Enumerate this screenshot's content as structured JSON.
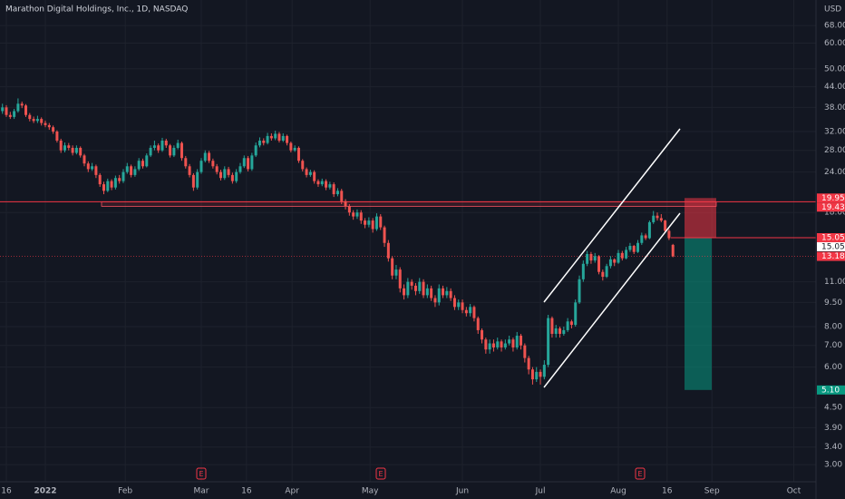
{
  "chart_data": {
    "type": "candlestick",
    "title": "Marathon Digital Holdings, Inc., 1D, NASDAQ",
    "y_axis_label": "USD",
    "log_scale": true,
    "grid": true,
    "up_color": "#26a69a",
    "down_color": "#ef5350",
    "ylim": [
      2.35,
      81.5
    ],
    "xlim": [
      -0.63,
      208.7
    ],
    "yticks": [
      {
        "value": 68,
        "label": "68.00"
      },
      {
        "value": 60,
        "label": "60.00"
      },
      {
        "value": 50,
        "label": "50.00"
      },
      {
        "value": 44,
        "label": "44.00"
      },
      {
        "value": 38,
        "label": "38.00"
      },
      {
        "value": 32,
        "label": "32.00"
      },
      {
        "value": 28,
        "label": "28.00"
      },
      {
        "value": 24,
        "label": "24.00"
      },
      {
        "value": 18,
        "label": "18.00"
      },
      {
        "value": 11,
        "label": "11.00"
      },
      {
        "value": 9.5,
        "label": "9.50"
      },
      {
        "value": 8,
        "label": "8.00"
      },
      {
        "value": 7,
        "label": "7.00"
      },
      {
        "value": 6,
        "label": "6.00"
      },
      {
        "value": 4.5,
        "label": "4.50"
      },
      {
        "value": 3.9,
        "label": "3.90"
      },
      {
        "value": 3.4,
        "label": "3.40"
      },
      {
        "value": 3,
        "label": "3.00"
      }
    ],
    "xticks": [
      {
        "value": 1,
        "label": "16"
      },
      {
        "value": 11,
        "label": "2022"
      },
      {
        "value": 31.5,
        "label": "Feb"
      },
      {
        "value": 51,
        "label": "Mar"
      },
      {
        "value": 62.6,
        "label": "16"
      },
      {
        "value": 74.3,
        "label": "Apr"
      },
      {
        "value": 94.3,
        "label": "May"
      },
      {
        "value": 118,
        "label": "Jun"
      },
      {
        "value": 138,
        "label": "Jul"
      },
      {
        "value": 158,
        "label": "Aug"
      },
      {
        "value": 170.5,
        "label": "16"
      },
      {
        "value": 182,
        "label": "Sep"
      },
      {
        "value": 203,
        "label": "Oct"
      }
    ],
    "price_labels": [
      {
        "value": 19.95,
        "color": "#f23645"
      },
      {
        "value": 19.43,
        "color": "#f23645"
      },
      {
        "value": 15.05,
        "color": "#f23645"
      },
      {
        "value": 15.05,
        "color": "#ffffff"
      },
      {
        "value": 13.18,
        "color": "#f23645"
      },
      {
        "value": 5.1,
        "label": "5.10",
        "color": "#089981"
      }
    ],
    "earnings_markers": [
      "E",
      "E",
      "E"
    ],
    "candles": [
      [
        37,
        39,
        36.3,
        38
      ],
      [
        38,
        38.6,
        35.5,
        36
      ],
      [
        36,
        36.8,
        35,
        35.5
      ],
      [
        35.5,
        37.6,
        35,
        37
      ],
      [
        37,
        40.5,
        36.6,
        39
      ],
      [
        39,
        39.6,
        37.8,
        38.5
      ],
      [
        38.5,
        38.9,
        35.5,
        36
      ],
      [
        36,
        36.5,
        34.4,
        35
      ],
      [
        35,
        35.6,
        34,
        34.5
      ],
      [
        34.5,
        35.8,
        34,
        35
      ],
      [
        35,
        35.4,
        33.4,
        34
      ],
      [
        34,
        34.6,
        33,
        33.5
      ],
      [
        33.5,
        34,
        32.4,
        33
      ],
      [
        33,
        33.4,
        31.5,
        32
      ],
      [
        32,
        32.3,
        29.6,
        30
      ],
      [
        30,
        30.4,
        27.5,
        28
      ],
      [
        28,
        29.6,
        27.6,
        29
      ],
      [
        29,
        29.5,
        28,
        28.5
      ],
      [
        28.5,
        29,
        27,
        27.5
      ],
      [
        27.5,
        29,
        27.2,
        28.5
      ],
      [
        28.5,
        28.8,
        26.6,
        27
      ],
      [
        27,
        27.3,
        25,
        25.5
      ],
      [
        25.5,
        25.9,
        24,
        24.5
      ],
      [
        24.5,
        25.6,
        24.2,
        25
      ],
      [
        25,
        25.3,
        23,
        23.5
      ],
      [
        23.5,
        23.8,
        21.6,
        22
      ],
      [
        22,
        22.4,
        20.5,
        21
      ],
      [
        21,
        22.9,
        20.8,
        22.5
      ],
      [
        22.5,
        22.8,
        21.1,
        21.5
      ],
      [
        21.5,
        23.4,
        21.2,
        23
      ],
      [
        23,
        23.5,
        22.1,
        22.5
      ],
      [
        22.5,
        24.5,
        22.2,
        24
      ],
      [
        24,
        25.6,
        23.7,
        25
      ],
      [
        25,
        25.3,
        23.1,
        23.5
      ],
      [
        23.5,
        25,
        23.2,
        24.5
      ],
      [
        24.5,
        26.5,
        24.2,
        26
      ],
      [
        26,
        26.4,
        24.6,
        25
      ],
      [
        25,
        27.4,
        24.8,
        27
      ],
      [
        27,
        29,
        26.7,
        28.5
      ],
      [
        28.5,
        30,
        28,
        29
      ],
      [
        29,
        29.4,
        27.5,
        28
      ],
      [
        28,
        30.6,
        27.7,
        30
      ],
      [
        30,
        30.4,
        28.5,
        29
      ],
      [
        29,
        29.3,
        26.6,
        27
      ],
      [
        27,
        29,
        26.7,
        28.5
      ],
      [
        28.5,
        30.2,
        28.2,
        29.5
      ],
      [
        29.5,
        29.8,
        26,
        26.5
      ],
      [
        26.5,
        26.9,
        24.6,
        25
      ],
      [
        25,
        25.4,
        23.1,
        23.5
      ],
      [
        23.5,
        23.8,
        21,
        21.5
      ],
      [
        21.5,
        24.5,
        21.2,
        24
      ],
      [
        24,
        26.5,
        23.7,
        26
      ],
      [
        26,
        28,
        25.7,
        27.5
      ],
      [
        27.5,
        27.9,
        25.6,
        26
      ],
      [
        26,
        26.4,
        24.6,
        25
      ],
      [
        25,
        25.4,
        23.6,
        24
      ],
      [
        24,
        24.4,
        22.6,
        23
      ],
      [
        23,
        25,
        22.7,
        24.5
      ],
      [
        24.5,
        24.9,
        23.1,
        23.5
      ],
      [
        23.5,
        23.9,
        22.1,
        22.5
      ],
      [
        22.5,
        24.5,
        22.2,
        24
      ],
      [
        24,
        25.6,
        23.7,
        25
      ],
      [
        25,
        27,
        24.7,
        26.5
      ],
      [
        26.5,
        26.9,
        24.1,
        24.5
      ],
      [
        24.5,
        27.5,
        24.2,
        27
      ],
      [
        27,
        29.6,
        26.7,
        29
      ],
      [
        29,
        30.7,
        28.6,
        30
      ],
      [
        30,
        30.5,
        29,
        29.5
      ],
      [
        29.5,
        31.7,
        29.2,
        31
      ],
      [
        31,
        31.6,
        30,
        30.5
      ],
      [
        30.5,
        32.2,
        30.1,
        31.5
      ],
      [
        31.5,
        31.9,
        29.6,
        30
      ],
      [
        30,
        31.6,
        29.7,
        31
      ],
      [
        31,
        31.3,
        29,
        29.5
      ],
      [
        29.5,
        29.8,
        27.6,
        28
      ],
      [
        28,
        29,
        27.7,
        28.5
      ],
      [
        28.5,
        28.8,
        25.6,
        26
      ],
      [
        26,
        26.3,
        24.1,
        24.5
      ],
      [
        24.5,
        24.8,
        23.1,
        23.5
      ],
      [
        23.5,
        24.4,
        23.2,
        24
      ],
      [
        24,
        24.3,
        22.1,
        22.5
      ],
      [
        22.5,
        22.8,
        21.6,
        22
      ],
      [
        22,
        22.9,
        21.7,
        22.5
      ],
      [
        22.5,
        22.8,
        21.1,
        21.5
      ],
      [
        21.5,
        22.4,
        21.2,
        22
      ],
      [
        22,
        22.3,
        20.1,
        20.5
      ],
      [
        20.5,
        21.4,
        20.2,
        21
      ],
      [
        21,
        21.3,
        19.1,
        19.5
      ],
      [
        19.5,
        19.8,
        18.4,
        18.8
      ],
      [
        18.8,
        19.1,
        17.6,
        18
      ],
      [
        18,
        18.3,
        17.1,
        17.5
      ],
      [
        17.5,
        18.4,
        17.2,
        18
      ],
      [
        18,
        18.3,
        16.6,
        17
      ],
      [
        17,
        17.3,
        16.1,
        16.5
      ],
      [
        16.5,
        17.4,
        16.2,
        17
      ],
      [
        17,
        17.3,
        15.6,
        16
      ],
      [
        16,
        17.9,
        15.8,
        17.5
      ],
      [
        17.5,
        17.8,
        15.9,
        16.2
      ],
      [
        16.2,
        16.4,
        14.1,
        14.5
      ],
      [
        14.5,
        14.8,
        12.7,
        13
      ],
      [
        13,
        13.2,
        11.2,
        11.5
      ],
      [
        11.5,
        12.4,
        11.2,
        12
      ],
      [
        12,
        12.2,
        10.2,
        10.5
      ],
      [
        10.5,
        10.8,
        9.7,
        10
      ],
      [
        10,
        11.3,
        9.8,
        11
      ],
      [
        11,
        11.2,
        10.4,
        10.7
      ],
      [
        10.7,
        10.9,
        10,
        10.3
      ],
      [
        10.3,
        11.3,
        10.1,
        11
      ],
      [
        11,
        11.2,
        9.8,
        10
      ],
      [
        10,
        10.8,
        9.8,
        10.5
      ],
      [
        10.5,
        10.7,
        9.6,
        9.8
      ],
      [
        9.8,
        10,
        9.2,
        9.5
      ],
      [
        9.5,
        10.8,
        9.3,
        10.5
      ],
      [
        10.5,
        10.7,
        9.8,
        10
      ],
      [
        10,
        10.6,
        9.8,
        10.3
      ],
      [
        10.3,
        10.5,
        9.6,
        9.8
      ],
      [
        9.8,
        10,
        9,
        9.2
      ],
      [
        9.2,
        9.7,
        9,
        9.5
      ],
      [
        9.5,
        9.7,
        8.8,
        9
      ],
      [
        9,
        9.2,
        8.6,
        8.8
      ],
      [
        8.8,
        9.4,
        8.6,
        9.2
      ],
      [
        9.2,
        9.3,
        8.3,
        8.5
      ],
      [
        8.5,
        8.6,
        7.6,
        7.8
      ],
      [
        7.8,
        7.9,
        7.1,
        7.3
      ],
      [
        7.3,
        7.4,
        6.6,
        6.8
      ],
      [
        6.8,
        7.3,
        6.6,
        7.1
      ],
      [
        7.1,
        7.3,
        6.7,
        6.9
      ],
      [
        6.9,
        7.4,
        6.8,
        7.2
      ],
      [
        7.2,
        7.3,
        6.7,
        6.9
      ],
      [
        6.9,
        7.3,
        6.8,
        7.1
      ],
      [
        7.1,
        7.5,
        7,
        7.3
      ],
      [
        7.3,
        7.4,
        6.7,
        6.9
      ],
      [
        6.9,
        7.7,
        6.8,
        7.5
      ],
      [
        7.5,
        7.6,
        6.8,
        7
      ],
      [
        7,
        7.1,
        6.2,
        6.4
      ],
      [
        6.4,
        6.5,
        5.7,
        5.9
      ],
      [
        5.9,
        6,
        5.3,
        5.5
      ],
      [
        5.5,
        6,
        5.4,
        5.8
      ],
      [
        5.8,
        5.9,
        5.3,
        5.6
      ],
      [
        5.6,
        6.3,
        5.5,
        6.1
      ],
      [
        6.1,
        8.7,
        6,
        8.5
      ],
      [
        8.5,
        8.6,
        7.4,
        7.6
      ],
      [
        7.6,
        8.1,
        7.4,
        7.9
      ],
      [
        7.9,
        8,
        7.4,
        7.6
      ],
      [
        7.6,
        8,
        7.5,
        7.8
      ],
      [
        7.8,
        8.5,
        7.7,
        8.3
      ],
      [
        8.3,
        8.4,
        7.9,
        8.1
      ],
      [
        8.1,
        9.7,
        8,
        9.5
      ],
      [
        9.5,
        11.5,
        9.4,
        11.2
      ],
      [
        11.2,
        12.8,
        11,
        12.5
      ],
      [
        12.5,
        13.7,
        12.3,
        13.4
      ],
      [
        13.4,
        13.6,
        12.5,
        12.8
      ],
      [
        12.8,
        13.5,
        12.6,
        13.2
      ],
      [
        13.2,
        13.3,
        11.6,
        11.8
      ],
      [
        11.8,
        12,
        11.1,
        11.4
      ],
      [
        11.4,
        12.5,
        11.3,
        12.3
      ],
      [
        12.3,
        13.2,
        12.1,
        12.9
      ],
      [
        12.9,
        13,
        12.3,
        12.6
      ],
      [
        12.6,
        13.8,
        12.5,
        13.5
      ],
      [
        13.5,
        13.7,
        12.8,
        13
      ],
      [
        13,
        14.1,
        12.9,
        13.8
      ],
      [
        13.8,
        14.5,
        13.6,
        14.2
      ],
      [
        14.2,
        14.3,
        13.4,
        13.6
      ],
      [
        13.6,
        14.8,
        13.5,
        14.5
      ],
      [
        14.5,
        15.6,
        14.3,
        15.3
      ],
      [
        15.3,
        15.5,
        14.8,
        15
      ],
      [
        15,
        17,
        14.9,
        16.8
      ],
      [
        16.8,
        18.2,
        16.6,
        17.6
      ],
      [
        17.6,
        18,
        17,
        17.3
      ],
      [
        17.3,
        17.8,
        16.8,
        17
      ],
      [
        17,
        17.1,
        15.6,
        15.8
      ],
      [
        15.8,
        16,
        14.8,
        15
      ],
      [
        14.3,
        14.4,
        13.1,
        13.18
      ]
    ]
  }
}
